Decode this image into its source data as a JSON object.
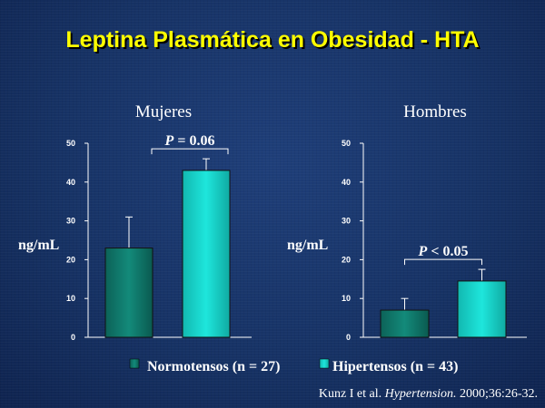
{
  "slide": {
    "title": "Leptina Plasmática en Obesidad - HTA",
    "citation": {
      "authors": "Kunz I et al.",
      "journal": "Hypertension.",
      "rest": "2000;36:26-32."
    }
  },
  "colors": {
    "title": "#ffff00",
    "normotensos": "#138a7a",
    "hipertensos": "#1ee6dc",
    "text": "#ffffff"
  },
  "chart_data": [
    {
      "type": "bar",
      "title": "Mujeres",
      "ylabel": "ng/mL",
      "ylim": [
        0,
        50
      ],
      "yticks": [
        0,
        10,
        20,
        30,
        40,
        50
      ],
      "categories": [
        "Normotensos (n = 27)",
        "Hipertensos (n = 43)"
      ],
      "values": [
        23,
        43
      ],
      "error_upper": [
        31,
        46
      ],
      "annotation": {
        "italic": "P",
        "text": " = 0.06"
      }
    },
    {
      "type": "bar",
      "title": "Hombres",
      "ylabel": "ng/mL",
      "ylim": [
        0,
        50
      ],
      "yticks": [
        0,
        10,
        20,
        30,
        40,
        50
      ],
      "categories": [
        "Normotensos (n = 27)",
        "Hipertensos (n = 43)"
      ],
      "values": [
        7,
        14.5
      ],
      "error_upper": [
        10,
        17.5
      ],
      "annotation": {
        "italic": "P",
        "text": " < 0.05"
      }
    }
  ],
  "legend": [
    {
      "label": "Normotensos (n = 27)"
    },
    {
      "label": "Hipertensos (n = 43)"
    }
  ]
}
